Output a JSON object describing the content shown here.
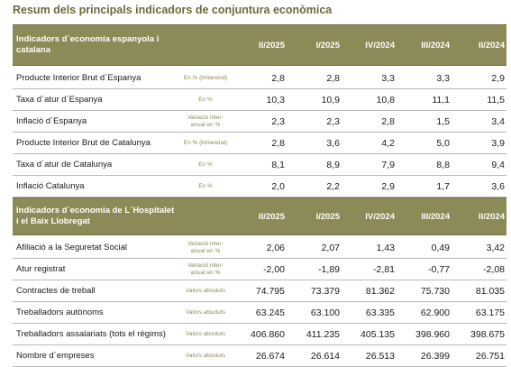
{
  "title": "Resum dels principals indicadors de conjuntura econòmica",
  "section1": {
    "header": "Indicadors d´economia espanyola i catalana",
    "columns": [
      "II/2025",
      "I/2025",
      "IV/2024",
      "III/2024",
      "II/2024"
    ],
    "rows": [
      {
        "label": "Producte Interior Brut d´Espanya",
        "unit": "En % (trimestral)",
        "values": [
          "2,8",
          "2,8",
          "3,3",
          "3,3",
          "2,9"
        ]
      },
      {
        "label": "Taxa d´atur d´Espanya",
        "unit": "En %",
        "values": [
          "10,3",
          "10,9",
          "10,8",
          "11,1",
          "11,5"
        ]
      },
      {
        "label": "Inflació d´Espanya",
        "unit": "Variació inter-anual en %",
        "values": [
          "2,3",
          "2,3",
          "2,8",
          "1,5",
          "3,4"
        ]
      },
      {
        "label": "Producte Interior Brut de Catalunya",
        "unit": "En % (trimestral)",
        "values": [
          "2,8",
          "3,6",
          "4,2",
          "5,0",
          "3,9"
        ]
      },
      {
        "label": "Taxa d´atur de Catalunya",
        "unit": "En %",
        "values": [
          "8,1",
          "8,9",
          "7,9",
          "8,8",
          "9,4"
        ]
      },
      {
        "label": "Inflació Catalunya",
        "unit": "En %",
        "values": [
          "2,0",
          "2,2",
          "2,9",
          "1,7",
          "3,6"
        ]
      }
    ]
  },
  "section2": {
    "header_line1": "Indicadors d´economia de L´Hospitalet",
    "header_line2": "i el Baix Llobregat",
    "columns": [
      "II/2025",
      "I/2025",
      "IV/2024",
      "III/2024",
      "II/2024"
    ],
    "rows": [
      {
        "label": "Afiliació a la Seguretat Social",
        "unit": "Variació inter-anual en %",
        "values": [
          "2,06",
          "2,07",
          "1,43",
          "0,49",
          "3,42"
        ]
      },
      {
        "label": "Atur registrat",
        "unit": "Variació inter-anual en %",
        "values": [
          "-2,00",
          "-1,89",
          "-2,81",
          "-0,77",
          "-2,08"
        ]
      },
      {
        "label": "Contractes de treball",
        "unit": "Valors absoluts",
        "values": [
          "74.795",
          "73.379",
          "81.362",
          "75.730",
          "81.035"
        ]
      },
      {
        "label": "Treballadors autònoms",
        "unit": "Valors absoluts",
        "values": [
          "63.245",
          "63.100",
          "63.335",
          "62.900",
          "63.175"
        ]
      },
      {
        "label": "Treballadors assalariats (tots el règims)",
        "unit": "Valors absoluts",
        "values": [
          "406.860",
          "411.235",
          "405.135",
          "398.960",
          "398.675"
        ]
      },
      {
        "label": "Nombre d´empreses",
        "unit": "Valors absoluts",
        "values": [
          "26.674",
          "26.614",
          "26.513",
          "26.399",
          "26.751"
        ]
      }
    ]
  }
}
